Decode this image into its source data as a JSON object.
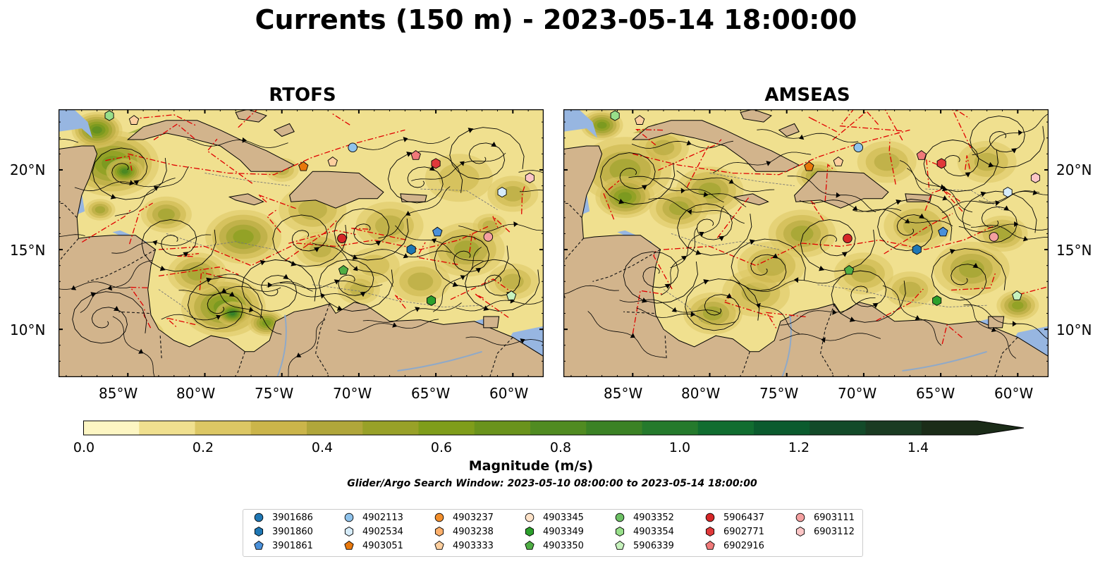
{
  "title": "Currents (150 m) - 2023-05-14 18:00:00",
  "panels": [
    {
      "id": "rtofs",
      "title": "RTOFS"
    },
    {
      "id": "amseas",
      "title": "AMSEAS"
    }
  ],
  "axes": {
    "lon_ticks": [
      "85°W",
      "80°W",
      "75°W",
      "70°W",
      "65°W",
      "60°W"
    ],
    "lat_ticks": [
      "20°N",
      "15°N",
      "10°N"
    ]
  },
  "colorbar": {
    "label": "Magnitude (m/s)",
    "tick_labels": [
      "0.0",
      "0.2",
      "0.4",
      "0.6",
      "0.8",
      "1.0",
      "1.2",
      "1.4"
    ],
    "range": [
      0,
      1.6
    ],
    "extend": "max",
    "colors": [
      "#fdf6c3",
      "#f0e08f",
      "#dcc764",
      "#cbb54a",
      "#b0a63a",
      "#98a128",
      "#7f9d1a",
      "#6a931c",
      "#508b21",
      "#3b8225",
      "#257a2c",
      "#116d30",
      "#0b5b2e",
      "#134a29",
      "#1a3b22",
      "#1b2c18"
    ]
  },
  "search_window": "Glider/Argo Search Window: 2023-05-10 08:00:00 to 2023-05-14 18:00:00",
  "land_color": "#d2b48c",
  "water_color": "#97b6e1",
  "legend": {
    "items": [
      {
        "id": "3901686",
        "color": "#1f77b4",
        "shape": "circle"
      },
      {
        "id": "3901860",
        "color": "#1f77b4",
        "shape": "hexagon"
      },
      {
        "id": "3901861",
        "color": "#4a90d9",
        "shape": "pentagon"
      },
      {
        "id": "4902113",
        "color": "#8fc3ec",
        "shape": "circle"
      },
      {
        "id": "4902534",
        "color": "#d6ecfa",
        "shape": "hexagon"
      },
      {
        "id": "4903051",
        "color": "#e8780c",
        "shape": "pentagon"
      },
      {
        "id": "4903237",
        "color": "#f28e2b",
        "shape": "circle"
      },
      {
        "id": "4903238",
        "color": "#fdb06c",
        "shape": "hexagon"
      },
      {
        "id": "4903333",
        "color": "#fdcf9e",
        "shape": "pentagon"
      },
      {
        "id": "4903345",
        "color": "#fde2c8",
        "shape": "circle"
      },
      {
        "id": "4903349",
        "color": "#2ca02c",
        "shape": "hexagon"
      },
      {
        "id": "4903350",
        "color": "#4fae44",
        "shape": "pentagon"
      },
      {
        "id": "4903352",
        "color": "#6cc064",
        "shape": "circle"
      },
      {
        "id": "4903354",
        "color": "#98df8a",
        "shape": "hexagon"
      },
      {
        "id": "5906339",
        "color": "#c7f2bd",
        "shape": "pentagon"
      },
      {
        "id": "5906437",
        "color": "#d62728",
        "shape": "circle"
      },
      {
        "id": "6902771",
        "color": "#e0393a",
        "shape": "hexagon"
      },
      {
        "id": "6902916",
        "color": "#f07a7a",
        "shape": "pentagon"
      },
      {
        "id": "6903111",
        "color": "#f4a0a0",
        "shape": "circle"
      },
      {
        "id": "6903112",
        "color": "#fcc6c6",
        "shape": "hexagon"
      }
    ]
  },
  "markers": [
    {
      "id": "4903354",
      "lon": -86.2,
      "lat": 23.4
    },
    {
      "id": "4903333",
      "lon": -84.6,
      "lat": 23.1
    },
    {
      "id": "4903051",
      "lon": -73.6,
      "lat": 20.2
    },
    {
      "id": "4903333",
      "lon": -71.7,
      "lat": 20.5
    },
    {
      "id": "4902113",
      "lon": -70.4,
      "lat": 21.4
    },
    {
      "id": "6902916",
      "lon": -66.3,
      "lat": 20.9
    },
    {
      "id": "6902771",
      "lon": -65.0,
      "lat": 20.4
    },
    {
      "id": "6903112",
      "lon": -58.9,
      "lat": 19.5
    },
    {
      "id": "4902534",
      "lon": -60.7,
      "lat": 18.6
    },
    {
      "id": "3901861",
      "lon": -64.9,
      "lat": 16.1
    },
    {
      "id": "6903111",
      "lon": -61.6,
      "lat": 15.8
    },
    {
      "id": "5906437",
      "lon": -71.1,
      "lat": 15.7
    },
    {
      "id": "3901860",
      "lon": -66.6,
      "lat": 15.0
    },
    {
      "id": "4903350",
      "lon": -71.0,
      "lat": 13.7
    },
    {
      "id": "5906339",
      "lon": -60.1,
      "lat": 12.1
    },
    {
      "id": "4903349",
      "lon": -65.3,
      "lat": 11.8
    }
  ]
}
